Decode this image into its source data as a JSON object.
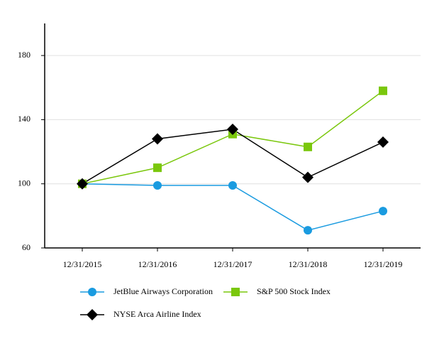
{
  "chart_data": {
    "type": "line",
    "categories": [
      "12/31/2015",
      "12/31/2016",
      "12/31/2017",
      "12/31/2018",
      "12/31/2019"
    ],
    "series": [
      {
        "name": "JetBlue Airways Corporation",
        "color": "#1a9be0",
        "marker": "circle",
        "values": [
          100,
          99,
          99,
          71,
          83
        ]
      },
      {
        "name": "S&P 500 Stock Index",
        "color": "#7ac70c",
        "marker": "square",
        "values": [
          100,
          110,
          131,
          123,
          158
        ]
      },
      {
        "name": "NYSE Arca Airline Index",
        "color": "#000000",
        "marker": "diamond",
        "values": [
          100,
          128,
          134,
          104,
          126
        ]
      }
    ],
    "ylim": [
      60,
      200
    ],
    "yticks": [
      60,
      100,
      140,
      180
    ],
    "grid": true
  }
}
